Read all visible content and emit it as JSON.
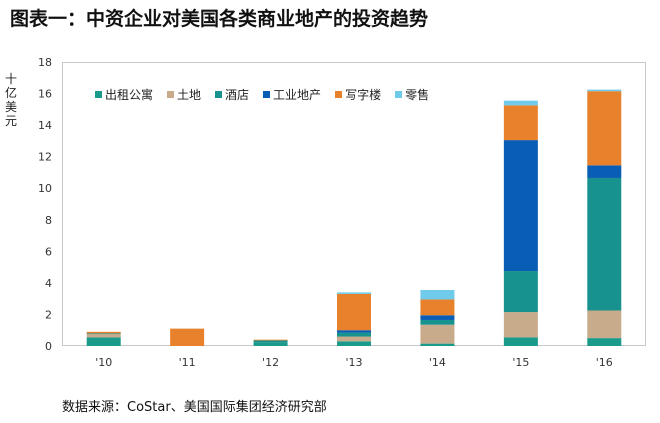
{
  "title": "图表一：中资企业对美国各类商业地产的投资趋势",
  "source": "数据来源：CoStar、美国国际集团经济研究部",
  "chart_data": {
    "type": "bar",
    "stacked": true,
    "categories": [
      "'10",
      "'11",
      "'12",
      "'13",
      "'14",
      "'15",
      "'16"
    ],
    "ylabel": "十亿美元",
    "ylim": [
      0,
      18
    ],
    "yticks": [
      0,
      2,
      4,
      6,
      8,
      10,
      12,
      14,
      16,
      18
    ],
    "grid": false,
    "legend_position": "top-left",
    "series": [
      {
        "name": "出租公寓",
        "color": "#1a9a8a",
        "values": [
          0.55,
          0.0,
          0.2,
          0.3,
          0.15,
          0.55,
          0.5
        ]
      },
      {
        "name": "土地",
        "color": "#c8ab8a",
        "values": [
          0.2,
          0.0,
          0.0,
          0.3,
          1.2,
          1.6,
          1.75
        ]
      },
      {
        "name": "酒店",
        "color": "#17928f",
        "values": [
          0.05,
          0.0,
          0.15,
          0.25,
          0.3,
          2.6,
          8.4
        ]
      },
      {
        "name": "工业地产",
        "color": "#0a5db5",
        "values": [
          0.0,
          0.0,
          0.0,
          0.15,
          0.3,
          8.3,
          0.8
        ]
      },
      {
        "name": "写字楼",
        "color": "#e8812b",
        "values": [
          0.1,
          1.1,
          0.05,
          2.3,
          1.0,
          2.2,
          4.7
        ]
      },
      {
        "name": "零售",
        "color": "#6fcbe9",
        "values": [
          0.0,
          0.0,
          0.0,
          0.1,
          0.6,
          0.3,
          0.1
        ]
      }
    ]
  }
}
